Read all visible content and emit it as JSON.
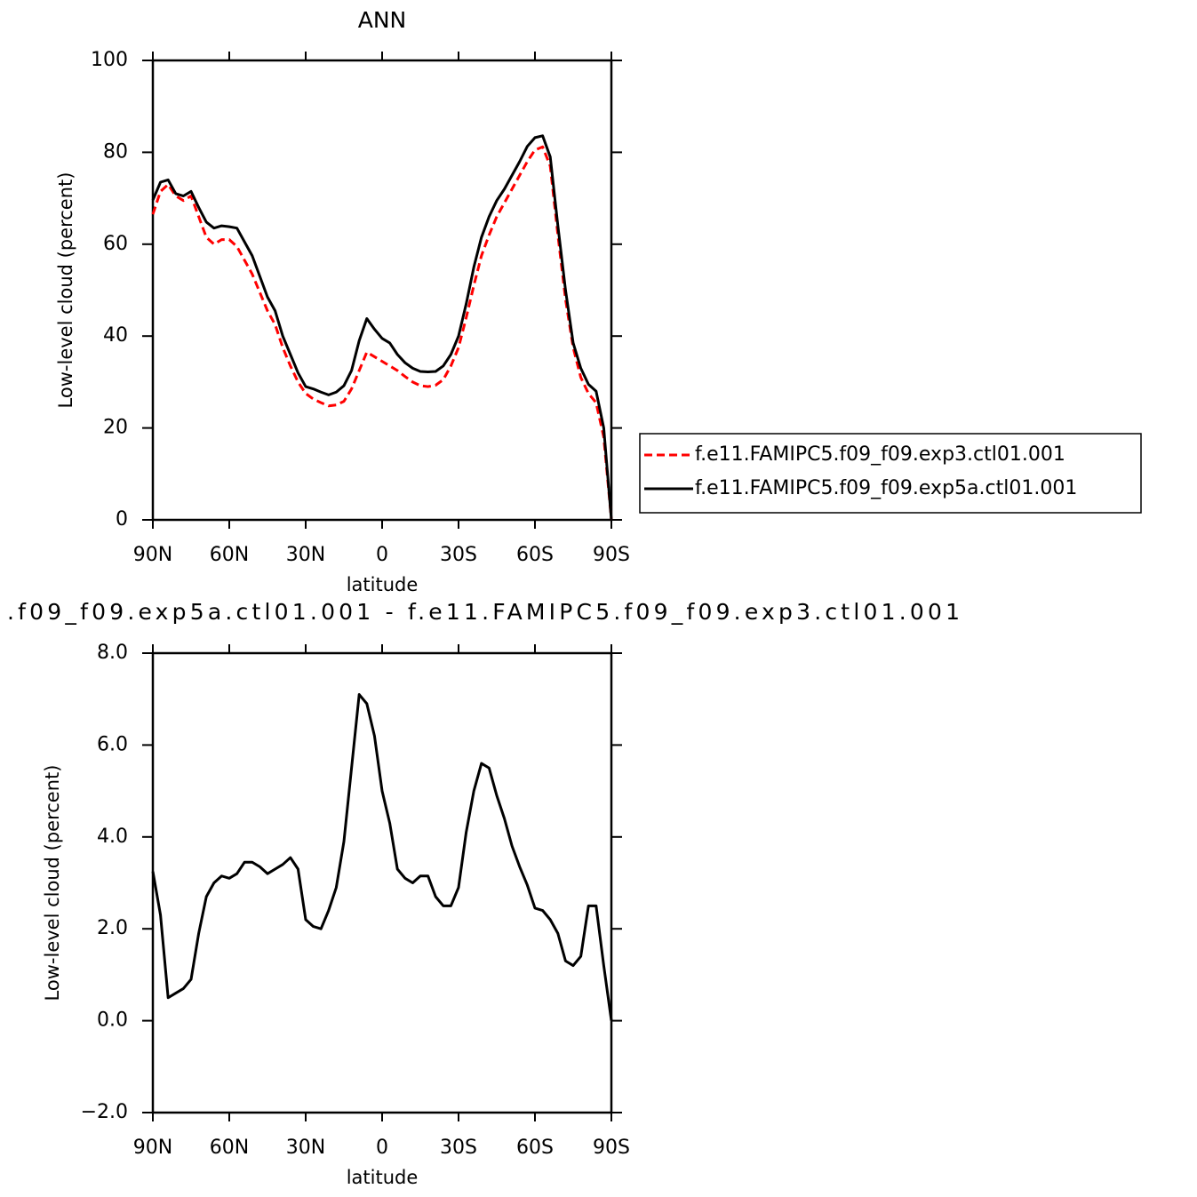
{
  "chart_data": [
    {
      "type": "line",
      "title": "ANN",
      "xlabel": "latitude",
      "ylabel": "Low-level cloud (percent)",
      "x": [
        90,
        87,
        84,
        81,
        78,
        75,
        72,
        69,
        66,
        63,
        60,
        57,
        54,
        51,
        48,
        45,
        42,
        39,
        36,
        33,
        30,
        27,
        24,
        21,
        18,
        15,
        12,
        9,
        6,
        3,
        0,
        -3,
        -6,
        -9,
        -12,
        -15,
        -18,
        -21,
        -24,
        -27,
        -30,
        -33,
        -36,
        -39,
        -42,
        -45,
        -48,
        -51,
        -54,
        -57,
        -60,
        -63,
        -66,
        -69,
        -72,
        -75,
        -78,
        -81,
        -84,
        -87,
        -90
      ],
      "xlim": [
        90,
        -90
      ],
      "xticks": [
        {
          "value": 90,
          "label": "90N"
        },
        {
          "value": 60,
          "label": "60N"
        },
        {
          "value": 30,
          "label": "30N"
        },
        0,
        {
          "value": -30,
          "label": "30S"
        },
        {
          "value": -60,
          "label": "60S"
        },
        {
          "value": -90,
          "label": "90S"
        }
      ],
      "ylim": [
        0,
        100
      ],
      "yticks": [
        0,
        20,
        40,
        60,
        80,
        100
      ],
      "legend": "right",
      "series": [
        {
          "name": "f.e11.FAMIPC5.f09_f09.exp3.ctl01.001",
          "color": "#ff0000",
          "line_style": "dashed",
          "values": [
            66.5,
            71.5,
            73,
            70.5,
            69.5,
            70.5,
            66,
            61.5,
            60,
            61,
            61,
            59.5,
            56.5,
            53.5,
            49.5,
            45.5,
            42.5,
            37.5,
            33.5,
            30,
            27.5,
            26.3,
            25.5,
            24.8,
            25,
            25.8,
            28.5,
            32.5,
            36.5,
            35.5,
            34.5,
            33.5,
            32.5,
            31.2,
            30,
            29.2,
            29,
            29.3,
            30.5,
            33.5,
            37.5,
            44,
            51,
            57.5,
            62,
            66,
            69,
            72,
            75,
            78,
            80.5,
            81.2,
            77,
            62,
            48,
            37.5,
            31,
            27.5,
            25.5,
            18,
            0
          ]
        },
        {
          "name": "f.e11.FAMIPC5.f09_f09.exp5a.ctl01.001",
          "color": "#000000",
          "line_style": "solid",
          "values": [
            69.6,
            73.5,
            74,
            71,
            70.5,
            71.5,
            68,
            64.8,
            63.5,
            64,
            63.8,
            63.5,
            60.5,
            57.5,
            53,
            48.5,
            45.5,
            40,
            36,
            32,
            29,
            28.5,
            27.8,
            27.2,
            27.8,
            29.2,
            32.5,
            39,
            43.8,
            41.5,
            39.5,
            38.5,
            36,
            34.2,
            33,
            32.3,
            32.2,
            32.3,
            33.5,
            36,
            40,
            47,
            55,
            61.5,
            66,
            69.5,
            72,
            75,
            78,
            81.3,
            83.2,
            83.6,
            79,
            64,
            50,
            38.5,
            33,
            29.5,
            28,
            20,
            0
          ]
        }
      ]
    },
    {
      "type": "line",
      "title": ".f09_f09.exp5a.ctl01.001  -  f.e11.FAMIPC5.f09_f09.exp3.ctl01.001",
      "xlabel": "latitude",
      "ylabel": "Low-level cloud (percent)",
      "x": [
        90,
        87,
        84,
        81,
        78,
        75,
        72,
        69,
        66,
        63,
        60,
        57,
        54,
        51,
        48,
        45,
        42,
        39,
        36,
        33,
        30,
        27,
        24,
        21,
        18,
        15,
        12,
        9,
        6,
        3,
        0,
        -3,
        -6,
        -9,
        -12,
        -15,
        -18,
        -21,
        -24,
        -27,
        -30,
        -33,
        -36,
        -39,
        -42,
        -45,
        -48,
        -51,
        -54,
        -57,
        -60,
        -63,
        -66,
        -69,
        -72,
        -75,
        -78,
        -81,
        -84,
        -87,
        -90
      ],
      "xlim": [
        90,
        -90
      ],
      "xticks": [
        {
          "value": 90,
          "label": "90N"
        },
        {
          "value": 60,
          "label": "60N"
        },
        {
          "value": 30,
          "label": "30N"
        },
        0,
        {
          "value": -30,
          "label": "30S"
        },
        {
          "value": -60,
          "label": "60S"
        },
        {
          "value": -90,
          "label": "90S"
        }
      ],
      "ylim": [
        -2,
        8
      ],
      "yticks": [
        {
          "value": -2,
          "label": "−2.0"
        },
        {
          "value": 0,
          "label": "0.0"
        },
        {
          "value": 2,
          "label": "2.0"
        },
        {
          "value": 4,
          "label": "4.0"
        },
        {
          "value": 6,
          "label": "6.0"
        },
        {
          "value": 8,
          "label": "8.0"
        }
      ],
      "color": "#000000",
      "values": [
        3.25,
        2.3,
        0.5,
        0.6,
        0.7,
        0.9,
        1.9,
        2.7,
        3.0,
        3.15,
        3.1,
        3.2,
        3.45,
        3.45,
        3.35,
        3.2,
        3.3,
        3.4,
        3.55,
        3.3,
        2.2,
        2.05,
        2.0,
        2.4,
        2.9,
        3.9,
        5.5,
        7.1,
        6.9,
        6.2,
        5.0,
        4.3,
        3.3,
        3.1,
        3.0,
        3.15,
        3.15,
        2.7,
        2.5,
        2.5,
        2.9,
        4.1,
        5.0,
        5.6,
        5.5,
        4.9,
        4.4,
        3.8,
        3.35,
        2.95,
        2.45,
        2.4,
        2.2,
        1.9,
        1.3,
        1.2,
        1.4,
        2.5,
        2.5,
        1.2,
        0
      ]
    }
  ]
}
